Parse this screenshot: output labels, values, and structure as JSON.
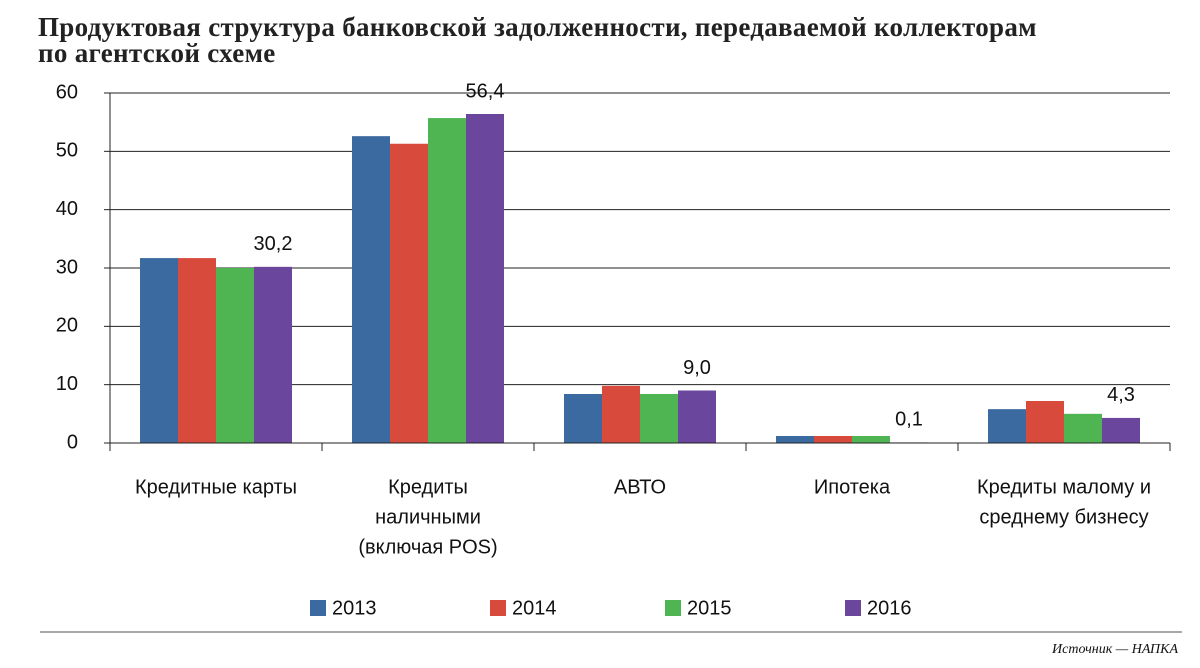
{
  "chart_data": {
    "type": "bar",
    "title": [
      "Продуктовая структура банковской задолженности, передаваемой коллекторам",
      "по агентской схеме"
    ],
    "categories": [
      [
        "Кредитные карты"
      ],
      [
        "Кредиты",
        "наличными",
        "(включая POS)"
      ],
      [
        "АВТО"
      ],
      [
        "Ипотека"
      ],
      [
        "Кредиты малому и",
        "среднему бизнесу"
      ]
    ],
    "series": [
      {
        "name": "2013",
        "color": "#3a6aa0",
        "values": [
          31.7,
          52.6,
          8.4,
          1.2,
          5.8
        ]
      },
      {
        "name": "2014",
        "color": "#d84b3c",
        "values": [
          31.7,
          51.3,
          9.8,
          1.2,
          7.2
        ]
      },
      {
        "name": "2015",
        "color": "#4fb553",
        "values": [
          30.0,
          55.7,
          8.4,
          1.2,
          5.0
        ]
      },
      {
        "name": "2016",
        "color": "#6a479c",
        "values": [
          30.2,
          56.4,
          9.0,
          0.1,
          4.3
        ],
        "value_labels": [
          "30,2",
          "56,4",
          "9,0",
          "0,1",
          "4,3"
        ]
      }
    ],
    "ylim": [
      0,
      60
    ],
    "yticks": [
      0,
      10,
      20,
      30,
      40,
      50,
      60
    ],
    "grid": true,
    "source": "Источник — НАПКА"
  }
}
